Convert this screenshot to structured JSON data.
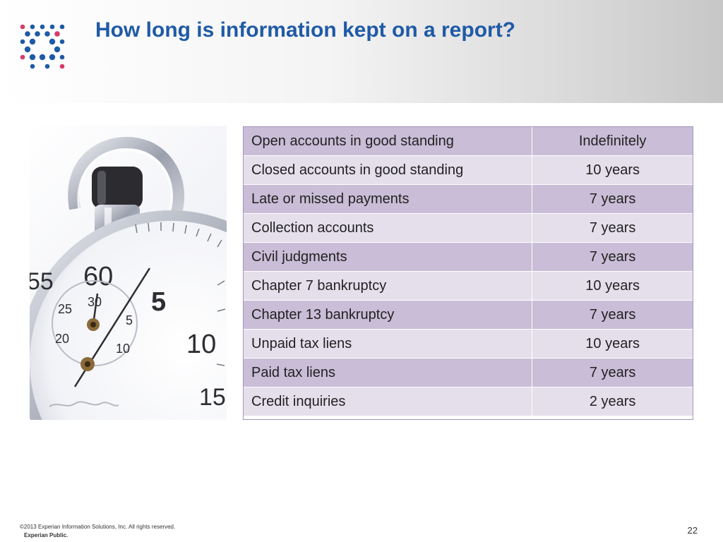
{
  "slide": {
    "title": "How long is information kept on a report?",
    "page_number": "22"
  },
  "logo": {
    "name": "experian-dot-logo-icon",
    "colors": {
      "blue": "#1f5aa6",
      "pink": "#d93a6a"
    }
  },
  "photo": {
    "name": "stopwatch-icon",
    "dial_labels": [
      "55",
      "60",
      "5",
      "10",
      "15",
      "30",
      "25",
      "5",
      "20",
      "10"
    ]
  },
  "table": {
    "rows": [
      {
        "item": "Open accounts in good standing",
        "duration": "Indefinitely"
      },
      {
        "item": "Closed accounts in good standing",
        "duration": "10 years"
      },
      {
        "item": "Late or missed payments",
        "duration": "7 years"
      },
      {
        "item": "Collection accounts",
        "duration": "7 years"
      },
      {
        "item": "Civil judgments",
        "duration": "7 years"
      },
      {
        "item": "Chapter 7 bankruptcy",
        "duration": "10 years"
      },
      {
        "item": "Chapter 13 bankruptcy",
        "duration": "7 years"
      },
      {
        "item": "Unpaid tax liens",
        "duration": "10 years"
      },
      {
        "item": "Paid tax liens",
        "duration": "7 years"
      },
      {
        "item": "Credit inquiries",
        "duration": "2 years"
      }
    ],
    "colors": {
      "row_dark": "#c9bdd7",
      "row_light": "#e5dfec",
      "border": "#a595bd"
    }
  },
  "footer": {
    "copyright": "©2013 Experian Information Solutions, Inc. All rights reserved.",
    "classification": "Experian Public."
  }
}
